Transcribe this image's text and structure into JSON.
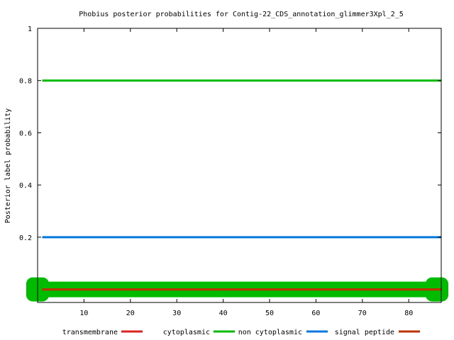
{
  "chart_data": {
    "type": "line",
    "title": "Phobius posterior probabilities for Contig-22_CDS_annotation_glimmer3Xpl_2_5",
    "xlabel": "",
    "ylabel": "Posterior label probability",
    "xlim": [
      0,
      87
    ],
    "ylim": [
      -0.05,
      1
    ],
    "x_ticks": [
      10,
      20,
      30,
      40,
      50,
      60,
      70,
      80
    ],
    "y_ticks": [
      0.2,
      0.4,
      0.6,
      0.8,
      1
    ],
    "y_tick_labels": [
      "0.2",
      "0.4",
      "0.6",
      "0.8",
      "1"
    ],
    "grid": false,
    "legend_position": "bottom",
    "series": [
      {
        "name": "transmembrane",
        "color": "#dd2222",
        "x": [
          1,
          87
        ],
        "y": [
          0,
          0
        ]
      },
      {
        "name": "cytoplasmic",
        "color": "#00bb00",
        "x": [
          1,
          87
        ],
        "y": [
          0.8,
          0.8
        ]
      },
      {
        "name": "non cytoplasmic",
        "color": "#0077dd",
        "x": [
          1,
          87
        ],
        "y": [
          0.2,
          0.2
        ]
      },
      {
        "name": "signal peptide",
        "color": "#bb3300",
        "x": [
          1,
          87
        ],
        "y": [
          0,
          0
        ]
      }
    ],
    "annotations": [
      {
        "label": "",
        "color": "#00bb00",
        "x_start": 0,
        "x_end": 87,
        "y": 0
      }
    ]
  }
}
